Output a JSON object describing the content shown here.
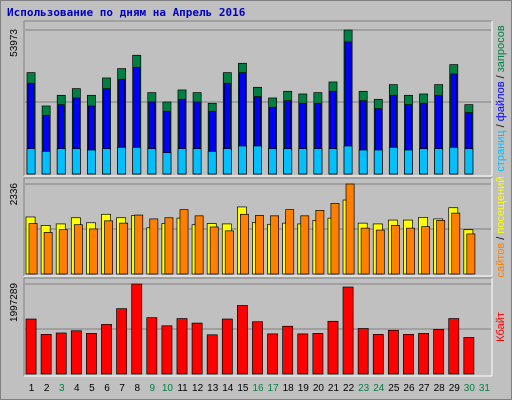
{
  "chart_data": {
    "type": "bar",
    "title": "Использование по дням на Апрель 2016",
    "categories": [
      "1",
      "2",
      "3",
      "4",
      "5",
      "6",
      "7",
      "8",
      "9",
      "10",
      "11",
      "12",
      "13",
      "14",
      "15",
      "16",
      "17",
      "18",
      "19",
      "20",
      "21",
      "22",
      "23",
      "24",
      "25",
      "26",
      "27",
      "28",
      "29",
      "30",
      "31"
    ],
    "weekend_days": [
      "3",
      "9",
      "10",
      "16",
      "17",
      "23",
      "24",
      "30",
      "31"
    ],
    "colors": {
      "hits": "#008040",
      "files": "#0000ff",
      "pages": "#00c0ff",
      "visits": "#ffff00",
      "sites": "#ff8000",
      "kbytes": "#ff0000",
      "weekday_label": "#000000",
      "weekend_label": "#008040"
    },
    "panels": [
      {
        "name": "hits-files-pages",
        "ymax_label": "53973",
        "ylim": [
          0,
          53973
        ],
        "ylabel_parts": [
          {
            "text": "страниц",
            "color": "#00c0ff"
          },
          {
            "text": " / ",
            "color": "#000000"
          },
          {
            "text": "файлов",
            "color": "#0000ff"
          },
          {
            "text": " / ",
            "color": "#000000"
          },
          {
            "text": "запросов",
            "color": "#008040"
          }
        ],
        "series": [
          {
            "key": "hits",
            "values": [
              38000,
              25500,
              29500,
              32000,
              29500,
              36000,
              39500,
              44500,
              30500,
              27000,
              31500,
              30500,
              26500,
              38000,
              41500,
              32500,
              28500,
              31000,
              30000,
              30500,
              34500,
              53973,
              31000,
              28000,
              33500,
              29500,
              30000,
              33500,
              41000,
              26000,
              0
            ]
          },
          {
            "key": "files",
            "values": [
              34000,
              22000,
              26000,
              28500,
              25500,
              32000,
              35500,
              40000,
              27000,
              23500,
              28000,
              27000,
              23500,
              34000,
              38000,
              29000,
              25000,
              27500,
              26500,
              26500,
              31000,
              49500,
              27500,
              24500,
              29500,
              26000,
              26500,
              29500,
              37500,
              23000,
              0
            ]
          },
          {
            "key": "pages",
            "values": [
              9500,
              8500,
              9500,
              9500,
              9000,
              9500,
              10000,
              10000,
              9500,
              8000,
              9500,
              9500,
              8500,
              9500,
              10500,
              10500,
              9500,
              9500,
              9500,
              9500,
              9500,
              10500,
              9000,
              9000,
              10000,
              9000,
              9500,
              9500,
              10000,
              9500,
              0
            ]
          }
        ]
      },
      {
        "name": "visits-sites",
        "ymax_label": "2336",
        "ylim": [
          0,
          2336
        ],
        "ylabel_parts": [
          {
            "text": "сайтов",
            "color": "#ff8000"
          },
          {
            "text": " / ",
            "color": "#000000"
          },
          {
            "text": "посещений",
            "color": "#ffff00"
          }
        ],
        "series": [
          {
            "key": "visits",
            "values": [
              1480,
              1260,
              1300,
              1460,
              1330,
              1550,
              1460,
              1520,
              1200,
              1310,
              1450,
              1280,
              1310,
              1300,
              1740,
              1340,
              1290,
              1320,
              1300,
              1390,
              1450,
              1920,
              1320,
              1300,
              1400,
              1400,
              1470,
              1430,
              1720,
              1150,
              0
            ]
          },
          {
            "key": "sites",
            "values": [
              1310,
              1080,
              1150,
              1280,
              1170,
              1380,
              1320,
              1530,
              1430,
              1460,
              1670,
              1510,
              1220,
              1120,
              1550,
              1520,
              1510,
              1670,
              1510,
              1650,
              1830,
              2336,
              1190,
              1140,
              1260,
              1190,
              1230,
              1390,
              1580,
              1040,
              0
            ]
          }
        ]
      },
      {
        "name": "kbytes",
        "ymax_label": "1997289",
        "ylim": [
          0,
          1997289
        ],
        "ylabel_parts": [
          {
            "text": "Кбайт",
            "color": "#ff0000"
          }
        ],
        "series": [
          {
            "key": "kbytes",
            "values": [
              1220000,
              880000,
              910000,
              960000,
              900000,
              1100000,
              1450000,
              1997289,
              1250000,
              1070000,
              1230000,
              1130000,
              870000,
              1220000,
              1520000,
              1160000,
              890000,
              1060000,
              890000,
              900000,
              1170000,
              1930000,
              1010000,
              880000,
              970000,
              880000,
              900000,
              990000,
              1230000,
              810000,
              0
            ]
          }
        ]
      }
    ]
  }
}
